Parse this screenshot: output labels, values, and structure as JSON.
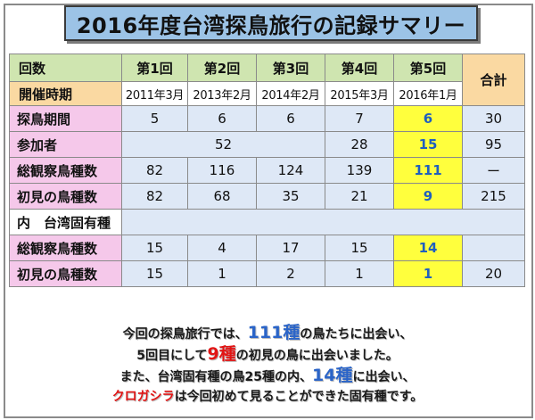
{
  "title": "2016年度台湾探鳥旅行の記録サマリー",
  "header": {
    "label": "回数",
    "period_label": "開催時期",
    "total_label": "合計",
    "trips": [
      "第1回",
      "第2回",
      "第3回",
      "第4回",
      "第5回"
    ],
    "dates": [
      "2011年3月",
      "2013年2月",
      "2014年2月",
      "2015年3月",
      "2016年1月"
    ]
  },
  "rows": {
    "days": {
      "label": "探鳥期間",
      "values": [
        "5",
        "6",
        "6",
        "7",
        "6"
      ],
      "total": "30"
    },
    "participants": {
      "label": "参加者",
      "merged": "52",
      "v4": "28",
      "v5": "15",
      "total": "95"
    },
    "species": {
      "label": "総観察鳥種数",
      "values": [
        "82",
        "116",
        "124",
        "139",
        "111"
      ],
      "total": "ー"
    },
    "new_species": {
      "label": "初見の鳥種数",
      "values": [
        "82",
        "68",
        "35",
        "21",
        "9"
      ],
      "total": "215"
    },
    "endemic_header": {
      "label": "内　台湾固有種"
    },
    "endemic_species": {
      "label": "総観察鳥種数",
      "values": [
        "15",
        "4",
        "17",
        "15",
        "14"
      ],
      "total": ""
    },
    "endemic_new": {
      "label": "初見の鳥種数",
      "values": [
        "15",
        "1",
        "2",
        "1",
        "1"
      ],
      "total": "20"
    }
  },
  "summary": {
    "l1a": "今回の探鳥旅行では、",
    "l1b": "111種",
    "l1c": "の鳥たちに出会い、",
    "l2a": "5回目にして",
    "l2b": "9種",
    "l2c": "の初見の鳥に出会いました。",
    "l3a": "また、台湾固有種の鳥25種の内、",
    "l3b": "14種",
    "l3c": "に出会い、",
    "l4a": "クロガシラ",
    "l4b": "は今回初めて見ることができた固有種です。"
  },
  "colors": {
    "title_bg": "#9cc3e6",
    "header_green": "#cfe5b0",
    "header_orange": "#fad9a2",
    "row_pink": "#f5c8ea",
    "cell_blue": "#dee8f6",
    "highlight_yellow": "#ffff3d",
    "accent_blue": "#2a64c8",
    "accent_red": "#e21414"
  }
}
